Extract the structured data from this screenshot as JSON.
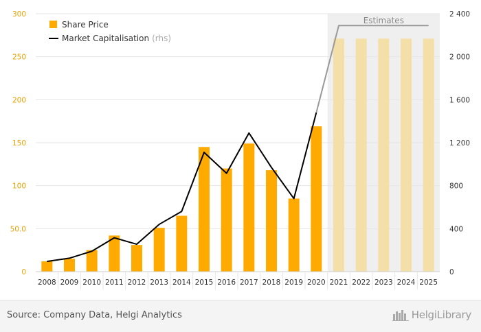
{
  "chart_data": {
    "type": "bar",
    "categories": [
      "2008",
      "2009",
      "2010",
      "2011",
      "2012",
      "2013",
      "2014",
      "2015",
      "2016",
      "2017",
      "2018",
      "2019",
      "2020",
      "2021",
      "2022",
      "2023",
      "2024",
      "2025"
    ],
    "series": [
      {
        "name": "Share Price",
        "kind": "bar",
        "axis": "left",
        "values": [
          12,
          15,
          25,
          42,
          31,
          51,
          65,
          145,
          120,
          149,
          118,
          85,
          169,
          271,
          271,
          271,
          271,
          271
        ]
      },
      {
        "name": "Market Capitalisation",
        "name_suffix": "(rhs)",
        "kind": "line",
        "axis": "right",
        "values": [
          95,
          125,
          190,
          315,
          255,
          440,
          560,
          1110,
          915,
          1290,
          970,
          680,
          1480,
          2290,
          2290,
          2290,
          2290,
          2290
        ]
      }
    ],
    "estimate_start_index": 13,
    "estimate_label": "Estimates",
    "y_left": {
      "min": 0,
      "max": 300,
      "ticks": [
        0,
        50,
        100,
        150,
        200,
        250,
        300
      ],
      "tick_labels": [
        "0",
        "50.0",
        "100",
        "150",
        "200",
        "250",
        "300"
      ]
    },
    "y_right": {
      "min": 0,
      "max": 2400,
      "ticks": [
        0,
        400,
        800,
        1200,
        1600,
        2000,
        2400
      ],
      "tick_labels": [
        "0",
        "400",
        "800",
        "1 200",
        "1 600",
        "2 000",
        "2 400"
      ]
    },
    "legend_position": "top-left",
    "grid": true,
    "colors": {
      "bar": "#FFAA00",
      "bar_estimate": "#F5DFA8",
      "line": "#000000",
      "line_estimate": "#999999",
      "estimate_band": "#EFEFEF",
      "left_axis_text": "#E8A000",
      "right_axis_text": "#333333",
      "grid": "#E6E6E6"
    }
  },
  "footer": {
    "source": "Source: Company Data, Helgi Analytics",
    "logo_text": "HelgiLibrary"
  }
}
